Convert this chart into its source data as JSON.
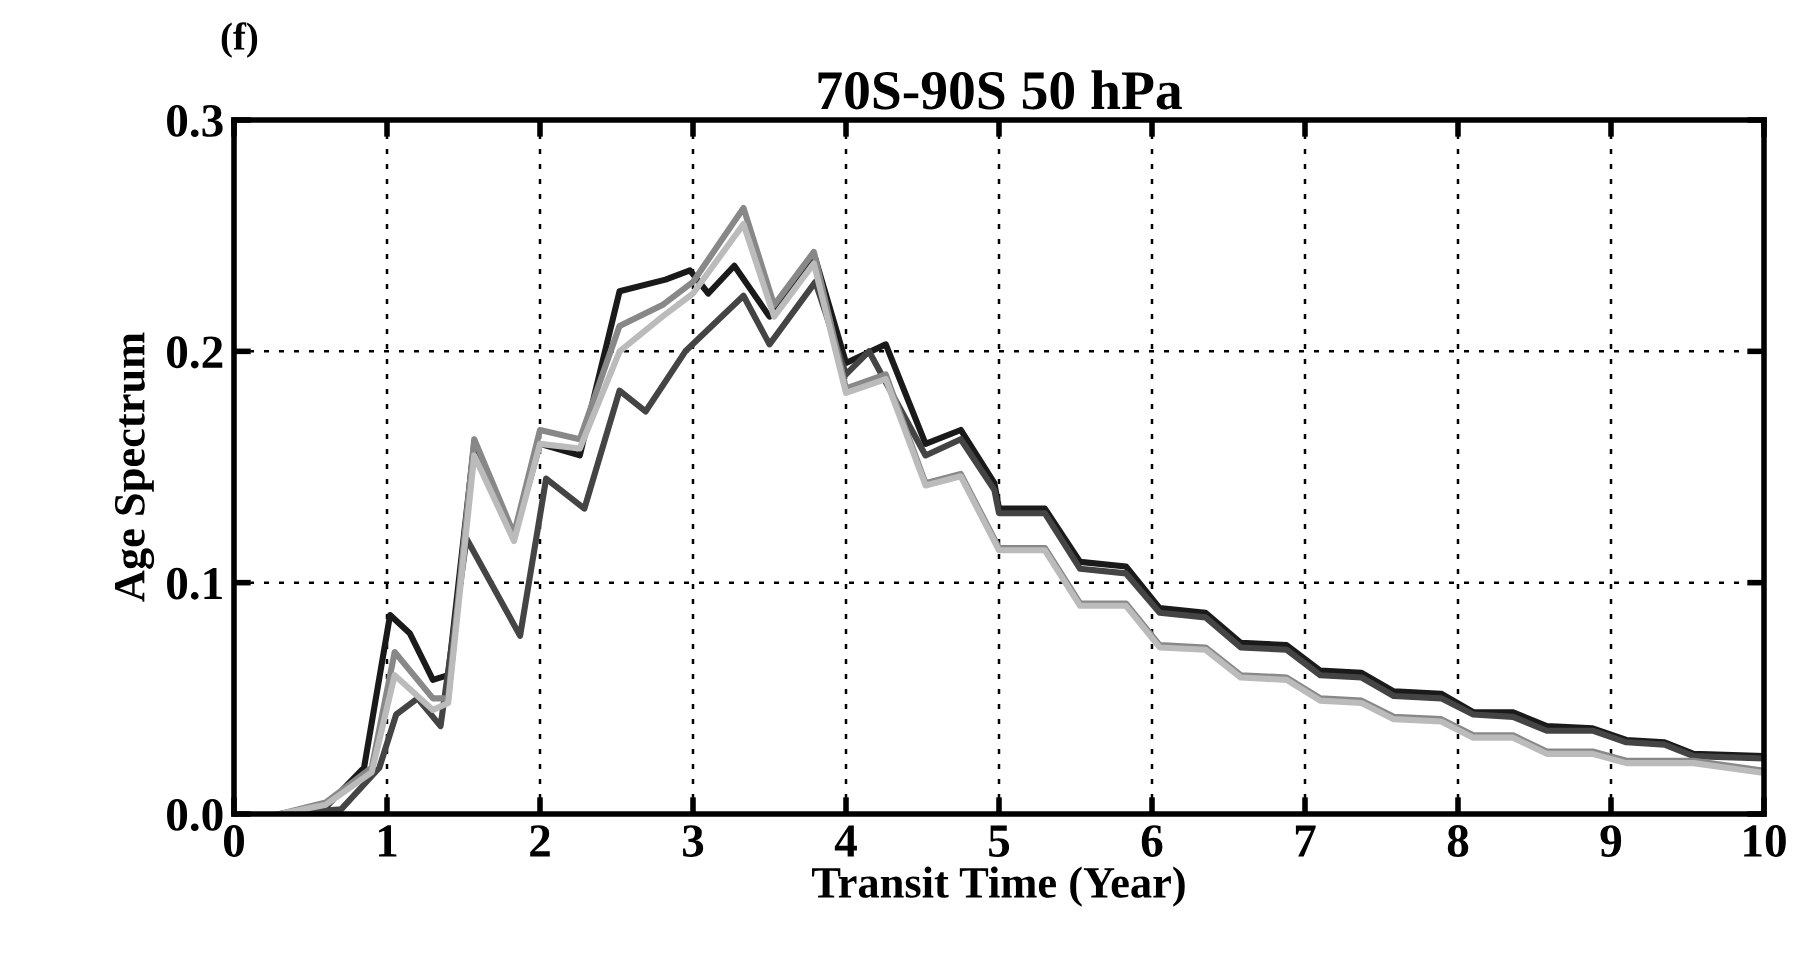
{
  "chart_data": {
    "type": "line",
    "title": "70S-90S 50 hPa",
    "xlabel": "Transit Time (Year)",
    "ylabel": "Age Spectrum",
    "annotations": [
      "(f)"
    ],
    "xlim": [
      0,
      10
    ],
    "xticks": [
      0,
      1,
      2,
      3,
      4,
      5,
      6,
      7,
      8,
      9,
      10
    ],
    "ylim": [
      0,
      0.3
    ],
    "yticks": [
      {
        "value": 0,
        "label": "0.0"
      },
      {
        "value": 0.1,
        "label": "0.1"
      },
      {
        "value": 0.2,
        "label": "0.2"
      },
      {
        "value": 0.3,
        "label": "0.3"
      }
    ],
    "grid": true,
    "line_style": "solid",
    "series": [
      {
        "color": "#1a1a1a",
        "x": [
          0.3,
          0.6,
          0.85,
          1.02,
          1.15,
          1.3,
          1.4,
          1.57,
          1.83,
          2.0,
          2.26,
          2.52,
          2.82,
          2.98,
          3.1,
          3.27,
          3.5,
          3.8,
          4.0,
          4.26,
          4.52,
          4.75,
          4.97,
          5.0,
          5.3,
          5.53,
          5.83,
          6.05,
          6.35,
          6.58,
          6.88,
          7.1,
          7.37,
          7.58,
          7.89,
          8.1,
          8.36,
          8.58,
          8.88,
          9.1,
          9.35,
          9.54,
          10.0
        ],
        "values": [
          0,
          0.003,
          0.02,
          0.086,
          0.078,
          0.058,
          0.06,
          0.16,
          0.12,
          0.16,
          0.155,
          0.226,
          0.231,
          0.235,
          0.225,
          0.237,
          0.215,
          0.24,
          0.195,
          0.203,
          0.16,
          0.166,
          0.143,
          0.132,
          0.132,
          0.109,
          0.107,
          0.089,
          0.087,
          0.074,
          0.073,
          0.062,
          0.061,
          0.053,
          0.052,
          0.044,
          0.044,
          0.038,
          0.037,
          0.032,
          0.031,
          0.026,
          0.025
        ]
      },
      {
        "color": "#444444",
        "x": [
          0.3,
          0.7,
          0.95,
          1.06,
          1.2,
          1.35,
          1.52,
          1.87,
          2.04,
          2.29,
          2.52,
          2.69,
          2.95,
          3.33,
          3.5,
          3.8,
          4.0,
          4.15,
          4.52,
          4.75,
          4.97,
          5.0,
          5.3,
          5.53,
          5.83,
          6.05,
          6.35,
          6.58,
          6.88,
          7.1,
          7.37,
          7.58,
          7.89,
          8.1,
          8.36,
          8.58,
          8.88,
          9.1,
          9.35,
          9.54,
          10.0
        ],
        "values": [
          0,
          0.002,
          0.02,
          0.043,
          0.05,
          0.038,
          0.119,
          0.077,
          0.145,
          0.132,
          0.183,
          0.174,
          0.2,
          0.224,
          0.203,
          0.23,
          0.19,
          0.2,
          0.155,
          0.162,
          0.14,
          0.13,
          0.13,
          0.106,
          0.104,
          0.087,
          0.085,
          0.072,
          0.071,
          0.06,
          0.059,
          0.051,
          0.05,
          0.043,
          0.042,
          0.036,
          0.036,
          0.031,
          0.03,
          0.025,
          0.024
        ]
      },
      {
        "color": "#888888",
        "x": [
          0.3,
          0.6,
          0.9,
          1.05,
          1.3,
          1.4,
          1.57,
          1.83,
          2.0,
          2.26,
          2.52,
          2.8,
          3.0,
          3.33,
          3.53,
          3.79,
          4.0,
          4.26,
          4.52,
          4.75,
          5.0,
          5.3,
          5.53,
          5.83,
          6.05,
          6.35,
          6.58,
          6.88,
          7.1,
          7.37,
          7.58,
          7.89,
          8.1,
          8.36,
          8.58,
          8.88,
          9.1,
          9.54,
          9.97
        ],
        "values": [
          0,
          0.005,
          0.02,
          0.07,
          0.05,
          0.05,
          0.162,
          0.121,
          0.166,
          0.162,
          0.211,
          0.22,
          0.23,
          0.262,
          0.22,
          0.243,
          0.184,
          0.19,
          0.143,
          0.147,
          0.115,
          0.115,
          0.091,
          0.091,
          0.073,
          0.072,
          0.06,
          0.059,
          0.05,
          0.049,
          0.042,
          0.041,
          0.034,
          0.034,
          0.027,
          0.027,
          0.023,
          0.023,
          0.019
        ]
      },
      {
        "color": "#bbbbbb",
        "x": [
          0.3,
          0.6,
          0.9,
          1.05,
          1.3,
          1.4,
          1.57,
          1.83,
          2.0,
          2.26,
          2.52,
          2.8,
          3.0,
          3.33,
          3.53,
          3.79,
          4.0,
          4.26,
          4.52,
          4.75,
          5.0,
          5.3,
          5.53,
          5.83,
          6.05,
          6.35,
          6.58,
          6.88,
          7.1,
          7.37,
          7.58,
          7.89,
          8.1,
          8.36,
          8.58,
          8.88,
          9.1,
          9.54,
          9.97
        ],
        "values": [
          0,
          0.004,
          0.018,
          0.06,
          0.045,
          0.048,
          0.155,
          0.118,
          0.16,
          0.158,
          0.2,
          0.215,
          0.225,
          0.255,
          0.215,
          0.238,
          0.182,
          0.188,
          0.142,
          0.146,
          0.114,
          0.114,
          0.09,
          0.09,
          0.072,
          0.071,
          0.059,
          0.058,
          0.049,
          0.048,
          0.041,
          0.04,
          0.033,
          0.033,
          0.026,
          0.026,
          0.022,
          0.022,
          0.018
        ]
      }
    ]
  }
}
